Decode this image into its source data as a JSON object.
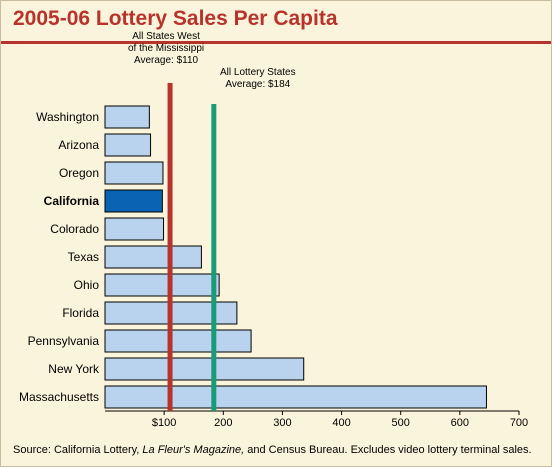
{
  "chart_data": {
    "type": "bar",
    "orientation": "horizontal",
    "title": "2005-06 Lottery Sales Per Capita",
    "categories": [
      "Washington",
      "Arizona",
      "Oregon",
      "California",
      "Colorado",
      "Texas",
      "Ohio",
      "Florida",
      "Pennsylvania",
      "New York",
      "Massachusetts"
    ],
    "values": [
      75,
      77,
      98,
      97,
      99,
      163,
      193,
      223,
      247,
      336,
      645
    ],
    "highlight": "California",
    "xlim": [
      0,
      700
    ],
    "xticks": [
      {
        "value": 100,
        "label": "$100"
      },
      {
        "value": 200,
        "label": "200"
      },
      {
        "value": 300,
        "label": "300"
      },
      {
        "value": 400,
        "label": "400"
      },
      {
        "value": 500,
        "label": "500"
      },
      {
        "value": 600,
        "label": "600"
      },
      {
        "value": 700,
        "label": "700"
      }
    ],
    "reference_lines": [
      {
        "value": 110,
        "label_lines": [
          "All States West",
          "of the Mississippi",
          "Average: $110"
        ],
        "color": "#b7332c"
      },
      {
        "value": 184,
        "label_lines": [
          "All Lottery States",
          "Average: $184"
        ],
        "color": "#1a9b77"
      }
    ],
    "colors": {
      "bar": "#b9d3ee",
      "highlight_bar": "#0b63b3",
      "accent": "#b7332c"
    },
    "grid": false
  },
  "source": {
    "prefix": "Source: California Lottery, ",
    "italic": "La Fleur's Magazine,",
    "suffix": " and Census Bureau. Excludes video lottery terminal sales."
  }
}
